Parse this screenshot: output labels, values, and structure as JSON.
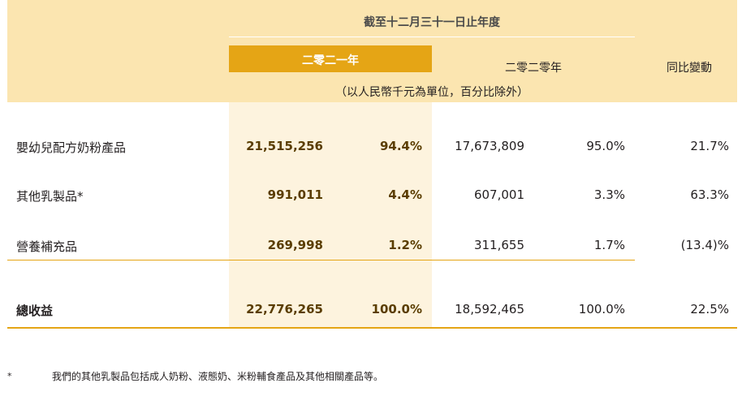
{
  "header": {
    "period": "截至十二月三十一日止年度",
    "year_2021": "二零二一年",
    "year_2020": "二零二零年",
    "yoy_change": "同比變動",
    "unit_note": "（以人民幣千元為單位，百分比除外）"
  },
  "rows": [
    {
      "label": "嬰幼兒配方奶粉產品",
      "v2021": "21,515,256",
      "p2021": "94.4%",
      "v2020": "17,673,809",
      "p2020": "95.0%",
      "yoy": "21.7%"
    },
    {
      "label": "其他乳製品*",
      "v2021": "991,011",
      "p2021": "4.4%",
      "v2020": "607,001",
      "p2020": "3.3%",
      "yoy": "63.3%"
    },
    {
      "label": "營養補充品",
      "v2021": "269,998",
      "p2021": "1.2%",
      "v2020": "311,655",
      "p2020": "1.7%",
      "yoy": "(13.4)%"
    }
  ],
  "total": {
    "label": "總收益",
    "v2021": "22,776,265",
    "p2021": "100.0%",
    "v2020": "18,592,465",
    "p2020": "100.0%",
    "yoy": "22.5%"
  },
  "footnote": {
    "mark": "*",
    "text": "我們的其他乳製品包括成人奶粉、液態奶、米粉輔食產品及其他相關產品等。"
  },
  "colors": {
    "header_band": "#fbe5b0",
    "accent": "#e5a515",
    "highlight_column": "#fdf3de"
  }
}
